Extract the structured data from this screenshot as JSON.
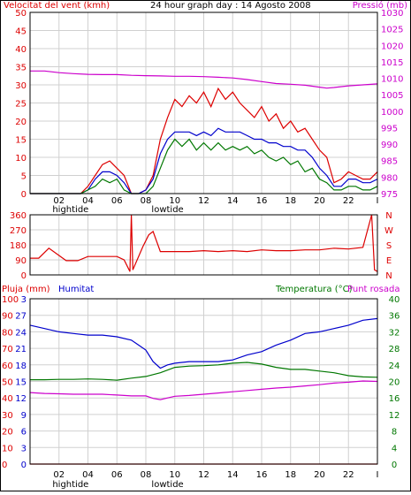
{
  "chart_data": [
    {
      "type": "line",
      "panel": "wind-pressure",
      "title": "24 hour graph day : 14 Agosto 2008",
      "left_label": "Velocitat del vent (kmh)",
      "right_label": "Pressió (mb)",
      "ylim_left": [
        0,
        50
      ],
      "ylim_right": [
        975,
        1030
      ],
      "left_ticks": [
        "50",
        "45",
        "40",
        "35",
        "30",
        "25",
        "20",
        "15",
        "10",
        "5",
        "0"
      ],
      "right_ticks": [
        "1030",
        "1025",
        "1020",
        "1015",
        "1010",
        "1005",
        "1000",
        "995",
        "990",
        "985",
        "980",
        "975"
      ],
      "x_ticks": [
        "02",
        "04",
        "06",
        "08",
        "10",
        "12",
        "14",
        "16",
        "18",
        "20",
        "22"
      ],
      "x_end_label": "I",
      "tide_labels": [
        {
          "text": "hightide",
          "hour": 2.8
        },
        {
          "text": "lowtide",
          "hour": 9.5
        }
      ],
      "grid": true,
      "series": [
        {
          "color": "#cc00cc",
          "axis": "right",
          "x": [
            0,
            1,
            2,
            3,
            4,
            5,
            6,
            7,
            8,
            9,
            10,
            11,
            12,
            13,
            14,
            15,
            16,
            17,
            18,
            19,
            20,
            20.5,
            21,
            22,
            23,
            24
          ],
          "values": [
            1012.2,
            1012.2,
            1011.7,
            1011.4,
            1011.2,
            1011.1,
            1011.1,
            1010.9,
            1010.8,
            1010.7,
            1010.6,
            1010.6,
            1010.5,
            1010.3,
            1010.1,
            1009.6,
            1009.0,
            1008.4,
            1008.2,
            1007.9,
            1007.3,
            1007.0,
            1007.2,
            1007.7,
            1008.0,
            1008.3
          ]
        },
        {
          "color": "#dd0000",
          "axis": "left",
          "x": [
            0,
            1,
            2,
            3,
            3.5,
            4,
            4.5,
            5,
            5.5,
            6,
            6.5,
            7,
            7.5,
            8,
            8.5,
            9,
            9.5,
            10,
            10.5,
            11,
            11.5,
            12,
            12.5,
            13,
            13.5,
            14,
            14.5,
            15,
            15.5,
            16,
            16.5,
            17,
            17.5,
            18,
            18.5,
            19,
            19.5,
            20,
            20.5,
            21,
            21.5,
            22,
            22.5,
            23,
            23.5,
            24
          ],
          "values": [
            0,
            0,
            0,
            0,
            0,
            2,
            5,
            8,
            9,
            7,
            5,
            0,
            0,
            1,
            5,
            15,
            21,
            26,
            24,
            27,
            25,
            28,
            24,
            29,
            26,
            28,
            25,
            23,
            21,
            24,
            20,
            22,
            18,
            20,
            17,
            18,
            15,
            12,
            10,
            3,
            4,
            6,
            5,
            4,
            4,
            6
          ]
        },
        {
          "color": "#0000cc",
          "axis": "left",
          "x": [
            0,
            1,
            2,
            3,
            3.5,
            4,
            4.5,
            5,
            5.5,
            6,
            6.5,
            7,
            7.5,
            8,
            8.5,
            9,
            9.5,
            10,
            10.5,
            11,
            11.5,
            12,
            12.5,
            13,
            13.5,
            14,
            14.5,
            15,
            15.5,
            16,
            16.5,
            17,
            17.5,
            18,
            18.5,
            19,
            19.5,
            20,
            20.5,
            21,
            21.5,
            22,
            22.5,
            23,
            23.5,
            24
          ],
          "values": [
            0,
            0,
            0,
            0,
            0,
            1,
            4,
            6,
            6,
            5,
            3,
            0,
            0,
            1,
            4,
            11,
            15,
            17,
            17,
            17,
            16,
            17,
            16,
            18,
            17,
            17,
            17,
            16,
            15,
            15,
            14,
            14,
            13,
            13,
            12,
            12,
            10,
            7,
            5,
            2,
            2,
            4,
            4,
            3,
            3,
            4
          ]
        },
        {
          "color": "#007700",
          "axis": "left",
          "x": [
            0,
            1,
            2,
            3,
            3.5,
            4,
            4.5,
            5,
            5.5,
            6,
            6.5,
            7,
            7.5,
            8,
            8.5,
            9,
            9.5,
            10,
            10.5,
            11,
            11.5,
            12,
            12.5,
            13,
            13.5,
            14,
            14.5,
            15,
            15.5,
            16,
            16.5,
            17,
            17.5,
            18,
            18.5,
            19,
            19.5,
            20,
            20.5,
            21,
            21.5,
            22,
            22.5,
            23,
            23.5,
            24
          ],
          "values": [
            0,
            0,
            0,
            0,
            0,
            1,
            2,
            4,
            3,
            4,
            1,
            0,
            0,
            0,
            2,
            7,
            12,
            15,
            13,
            15,
            12,
            14,
            12,
            14,
            12,
            13,
            12,
            13,
            11,
            12,
            10,
            9,
            10,
            8,
            9,
            6,
            7,
            4,
            3,
            1,
            1,
            2,
            2,
            1,
            1,
            2
          ]
        }
      ]
    },
    {
      "type": "line",
      "panel": "wind-direction",
      "left_ticks": [
        "360",
        "270",
        "180",
        "90",
        "0"
      ],
      "right_ticks": [
        "N",
        "W",
        "S",
        "E",
        "N"
      ],
      "ylim": [
        0,
        360
      ],
      "grid": true,
      "series": [
        {
          "color": "#dd0000",
          "x": [
            0,
            0.6,
            1.3,
            2.5,
            3.3,
            4,
            5,
            6,
            6.5,
            6.9,
            7,
            7.1,
            7.8,
            8.2,
            8.5,
            9,
            10,
            11,
            12,
            13,
            14,
            15,
            16,
            17,
            18,
            19,
            20,
            21,
            22,
            23,
            23.6,
            23.8,
            24
          ],
          "values": [
            100,
            100,
            160,
            85,
            85,
            110,
            110,
            110,
            90,
            20,
            360,
            30,
            170,
            240,
            260,
            140,
            140,
            140,
            145,
            140,
            145,
            140,
            150,
            145,
            145,
            150,
            150,
            160,
            155,
            165,
            360,
            30,
            20
          ]
        }
      ]
    },
    {
      "type": "line",
      "panel": "humidity-temperature",
      "left_label": "Pluja (mm)",
      "humidity_label": "Humitat",
      "right_label": "Temperatura (°C)",
      "right_label_2": "Punt rosada",
      "rain_ticks": [
        "100",
        "90",
        "80",
        "70",
        "60",
        "50",
        "40",
        "30",
        "20",
        "10",
        "0"
      ],
      "humidity_ticks": [
        "3",
        "27",
        "24",
        "21",
        "18",
        "15",
        "12",
        "9",
        "6",
        "3",
        "0"
      ],
      "temp_ticks": [
        "40",
        "36",
        "32",
        "28",
        "24",
        "20",
        "16",
        "12",
        "8",
        "4",
        "0"
      ],
      "ylim_left": [
        0,
        100
      ],
      "ylim_right": [
        0,
        40
      ],
      "x_ticks": [
        "02",
        "04",
        "06",
        "08",
        "10",
        "12",
        "14",
        "16",
        "18",
        "20",
        "22"
      ],
      "x_end_label": "I",
      "tide_labels": [
        {
          "text": "hightide",
          "hour": 2.8
        },
        {
          "text": "lowtide",
          "hour": 9.5
        }
      ],
      "grid": true,
      "series": [
        {
          "color": "#0000cc",
          "name": "Humitat",
          "x": [
            0,
            1,
            2,
            3,
            4,
            5,
            6,
            7,
            7.5,
            8,
            8.5,
            9,
            9.5,
            10,
            11,
            12,
            13,
            14,
            15,
            16,
            17,
            18,
            19,
            20,
            21,
            22,
            23,
            24
          ],
          "values": [
            84,
            82,
            80,
            79,
            78,
            78,
            77,
            75,
            72,
            69,
            62,
            58,
            60,
            61,
            62,
            62,
            62,
            63,
            66,
            68,
            72,
            75,
            79,
            80,
            82,
            84,
            87,
            88
          ]
        },
        {
          "color": "#007700",
          "name": "Temperatura",
          "x": [
            0,
            1,
            2,
            3,
            4,
            5,
            6,
            7,
            8,
            9,
            10,
            11,
            12,
            13,
            14,
            15,
            16,
            17,
            18,
            19,
            20,
            21,
            22,
            23,
            24
          ],
          "values": [
            20.4,
            20.4,
            20.5,
            20.5,
            20.6,
            20.5,
            20.3,
            20.8,
            21.2,
            22.1,
            23.4,
            23.7,
            23.8,
            24.0,
            24.4,
            24.6,
            24.2,
            23.4,
            22.9,
            22.9,
            22.5,
            22.1,
            21.4,
            21.1,
            21.0
          ]
        },
        {
          "color": "#cc00cc",
          "name": "Punt rosada",
          "x": [
            0,
            1,
            2,
            3,
            4,
            5,
            6,
            7,
            8,
            8.5,
            9,
            9.5,
            10,
            11,
            12,
            13,
            14,
            15,
            16,
            17,
            18,
            19,
            20,
            21,
            22,
            23,
            24
          ],
          "values": [
            17.3,
            17.1,
            17.0,
            16.9,
            16.9,
            16.9,
            16.7,
            16.5,
            16.5,
            15.9,
            15.6,
            16.0,
            16.4,
            16.6,
            16.9,
            17.2,
            17.5,
            17.8,
            18.1,
            18.4,
            18.6,
            18.9,
            19.2,
            19.6,
            19.8,
            20.1,
            20.0
          ]
        },
        {
          "color": "#dd0000",
          "name": "Pluja",
          "x": [
            0,
            24
          ],
          "values": [
            0,
            0
          ]
        }
      ]
    }
  ],
  "colors": {
    "wind_label": "#dd0000",
    "pressure_label": "#cc00cc",
    "rain_label": "#dd0000",
    "humidity_label": "#0000cc",
    "temp_label": "#007700",
    "dew_label": "#cc00cc",
    "tick_dark": "#000000"
  }
}
